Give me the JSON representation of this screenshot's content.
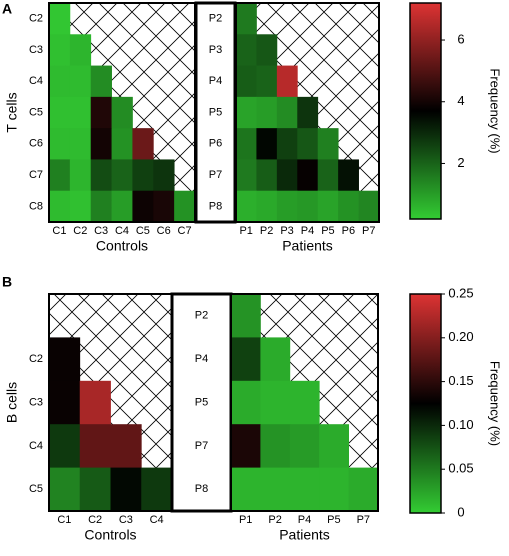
{
  "chart_data": [
    {
      "type": "heatmap",
      "panel_label": "A",
      "ylabel": "T cells",
      "colorbar": {
        "label": "Frequency (%)",
        "ticks": [
          2,
          4,
          6
        ],
        "range": [
          0.2,
          7.2
        ],
        "colors": {
          "low": "#33cc33",
          "mid": "#000000",
          "high": "#dd3333"
        }
      },
      "controls": {
        "xlabel": "Controls",
        "rows": [
          "C2",
          "C3",
          "C4",
          "C5",
          "C6",
          "C7",
          "C8"
        ],
        "cols": [
          "C1",
          "C2",
          "C3",
          "C4",
          "C5",
          "C6",
          "C7"
        ],
        "values": [
          [
            0.3,
            null,
            null,
            null,
            null,
            null,
            null
          ],
          [
            0.4,
            0.6,
            null,
            null,
            null,
            null,
            null
          ],
          [
            0.5,
            0.5,
            1.3,
            null,
            null,
            null,
            null
          ],
          [
            0.4,
            0.4,
            4.2,
            1.3,
            null,
            null,
            null
          ],
          [
            0.5,
            0.5,
            4.0,
            1.2,
            5.4,
            null,
            null
          ],
          [
            1.5,
            0.6,
            2.4,
            2.0,
            2.6,
            2.8,
            null
          ],
          [
            0.5,
            0.4,
            1.5,
            1.0,
            3.9,
            4.1,
            1.2
          ]
        ]
      },
      "middle_labels": [
        "P2",
        "P3",
        "P4",
        "P5",
        "P6",
        "P7",
        "P8"
      ],
      "patients": {
        "xlabel": "Patients",
        "rows": [
          "P2",
          "P3",
          "P4",
          "P5",
          "P6",
          "P7",
          "P8"
        ],
        "cols": [
          "P1",
          "P2",
          "P3",
          "P4",
          "P5",
          "P6",
          "P7"
        ],
        "values": [
          [
            1.6,
            null,
            null,
            null,
            null,
            null,
            null
          ],
          [
            2.0,
            2.2,
            null,
            null,
            null,
            null,
            null
          ],
          [
            2.1,
            2.0,
            6.6,
            null,
            null,
            null,
            null
          ],
          [
            0.9,
            1.0,
            1.3,
            2.8,
            null,
            null,
            null
          ],
          [
            1.7,
            3.6,
            2.6,
            2.2,
            1.5,
            null,
            null
          ],
          [
            1.6,
            2.1,
            3.0,
            3.8,
            2.0,
            3.4,
            null
          ],
          [
            0.7,
            0.8,
            1.0,
            1.1,
            0.9,
            1.2,
            1.4
          ]
        ]
      }
    },
    {
      "type": "heatmap",
      "panel_label": "B",
      "ylabel": "B cells",
      "colorbar": {
        "label": "Frequency (%)",
        "ticks": [
          0,
          0.05,
          0.1,
          0.15,
          0.2,
          0.25
        ],
        "tick_labels": [
          "0",
          "0.05",
          "0.10",
          "0.15",
          "0.20",
          "0.25"
        ],
        "range": [
          0,
          0.25
        ],
        "colors": {
          "low": "#33cc33",
          "mid": "#000000",
          "high": "#dd3333"
        }
      },
      "controls": {
        "xlabel": "Controls",
        "rows": [
          "",
          "C2",
          "C3",
          "C4",
          "C5"
        ],
        "cols": [
          "C1",
          "C2",
          "C3",
          "C4"
        ],
        "values": [
          [
            null,
            null,
            null,
            null
          ],
          [
            0.13,
            null,
            null,
            null
          ],
          [
            0.13,
            0.22,
            null,
            null
          ],
          [
            0.09,
            0.18,
            0.18,
            null
          ],
          [
            0.045,
            0.07,
            0.12,
            0.09
          ]
        ]
      },
      "middle_labels": [
        "P2",
        "P4",
        "P5",
        "P7",
        "P8"
      ],
      "patients": {
        "xlabel": "Patients",
        "rows": [
          "P2",
          "P4",
          "P5",
          "P7",
          "P8"
        ],
        "cols": [
          "P1",
          "P2",
          "P4",
          "P5",
          "P7"
        ],
        "values": [
          [
            0.035,
            null,
            null,
            null,
            null
          ],
          [
            0.085,
            0.02,
            null,
            null,
            null
          ],
          [
            0.02,
            0.015,
            0.015,
            null,
            null
          ],
          [
            0.14,
            0.035,
            0.03,
            0.02,
            null
          ],
          [
            0.015,
            0.015,
            0.015,
            0.015,
            0.02
          ]
        ]
      }
    }
  ]
}
